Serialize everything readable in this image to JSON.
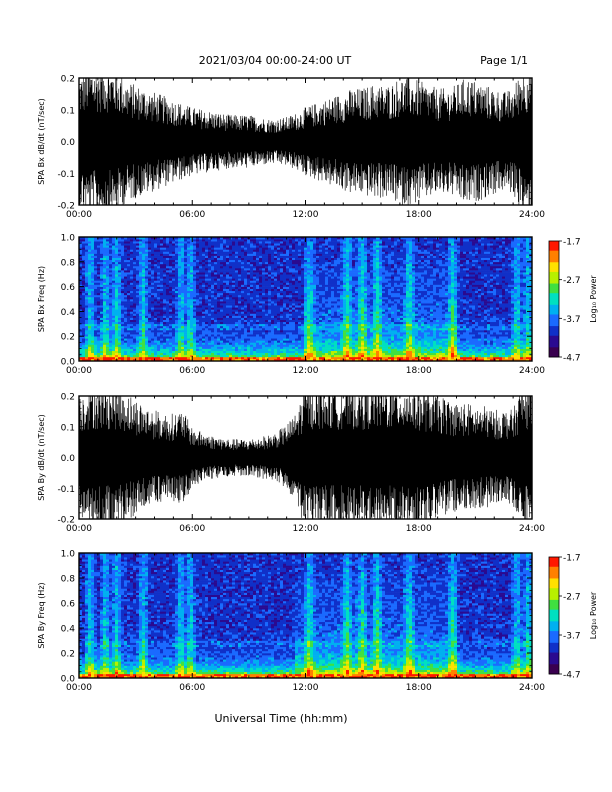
{
  "header": {
    "title": "2021/03/04  00:00-24:00 UT",
    "page": "Page 1/1"
  },
  "xlabel": "Universal Time (hh:mm)",
  "colors": {
    "trace": "#000000",
    "colormap": [
      "#3a0050",
      "#2a0a90",
      "#1030c8",
      "#1a6aff",
      "#00b0f0",
      "#00e0c0",
      "#40e040",
      "#b8f000",
      "#ffe000",
      "#ff8000",
      "#ff1800"
    ]
  },
  "chart_data": [
    {
      "type": "line",
      "ylabel": "SPA Bx dB/dt (nT/sec)",
      "xlim": [
        0,
        24
      ],
      "ylim": [
        -0.2,
        0.2
      ],
      "xticks": [
        "00:00",
        "06:00",
        "12:00",
        "18:00",
        "24:00"
      ],
      "yticks": [
        "-0.2",
        "-0.1",
        "0.0",
        "0.1",
        "0.2"
      ],
      "envelope": {
        "hours": [
          0,
          0.5,
          1,
          1.5,
          2,
          2.5,
          3,
          3.5,
          4,
          4.5,
          5,
          5.5,
          6,
          6.5,
          7,
          7.5,
          8,
          8.5,
          9,
          9.5,
          10,
          10.5,
          11,
          11.5,
          12,
          12.5,
          13,
          13.5,
          14,
          14.5,
          15,
          15.5,
          16,
          16.5,
          17,
          17.5,
          18,
          18.5,
          19,
          19.5,
          20,
          20.5,
          21,
          21.5,
          22,
          22.5,
          23,
          23.5,
          24
        ],
        "amplitude": [
          0.17,
          0.2,
          0.2,
          0.2,
          0.19,
          0.16,
          0.15,
          0.14,
          0.13,
          0.12,
          0.11,
          0.1,
          0.09,
          0.085,
          0.08,
          0.075,
          0.07,
          0.07,
          0.07,
          0.065,
          0.06,
          0.06,
          0.065,
          0.075,
          0.09,
          0.1,
          0.11,
          0.12,
          0.13,
          0.14,
          0.14,
          0.15,
          0.15,
          0.15,
          0.17,
          0.17,
          0.16,
          0.15,
          0.14,
          0.14,
          0.15,
          0.17,
          0.16,
          0.15,
          0.14,
          0.13,
          0.14,
          0.2,
          0.2
        ]
      }
    },
    {
      "type": "heatmap",
      "ylabel": "SPA Bx Freq (Hz)",
      "xlim": [
        0,
        24
      ],
      "ylim": [
        0,
        1
      ],
      "xticks": [
        "00:00",
        "06:00",
        "12:00",
        "18:00",
        "24:00"
      ],
      "yticks": [
        "0.0",
        "0.2",
        "0.4",
        "0.6",
        "0.8",
        "1.0"
      ],
      "colorbar": {
        "label": "Log₁₀ Power",
        "ticks": [
          "-1.7",
          "-2.7",
          "-3.7",
          "-4.7"
        ],
        "range": [
          -4.7,
          -1.7
        ]
      },
      "activity_hours": [
        0.6,
        1.4,
        2.0,
        3.4,
        5.4,
        5.9,
        12.2,
        14.2,
        15.0,
        15.8,
        17.5,
        19.8,
        23.2,
        23.8
      ],
      "active_intervals": [
        [
          12.0,
          20.0
        ]
      ]
    },
    {
      "type": "line",
      "ylabel": "SPA By dB/dt (nT/sec)",
      "xlim": [
        0,
        24
      ],
      "ylim": [
        -0.2,
        0.2
      ],
      "xticks": [
        "00:00",
        "06:00",
        "12:00",
        "18:00",
        "24:00"
      ],
      "yticks": [
        "-0.2",
        "-0.1",
        "0.0",
        "0.1",
        "0.2"
      ],
      "envelope": {
        "hours": [
          0,
          0.5,
          1,
          1.5,
          2,
          2.5,
          3,
          3.5,
          4,
          4.5,
          5,
          5.5,
          6,
          6.5,
          7,
          7.5,
          8,
          8.5,
          9,
          9.5,
          10,
          10.5,
          11,
          11.5,
          12,
          12.5,
          13,
          13.5,
          14,
          14.5,
          15,
          15.5,
          16,
          16.5,
          17,
          17.5,
          18,
          18.5,
          19,
          19.5,
          20,
          20.5,
          21,
          21.5,
          22,
          22.5,
          23,
          23.5,
          24
        ],
        "amplitude": [
          0.17,
          0.2,
          0.2,
          0.2,
          0.2,
          0.18,
          0.16,
          0.14,
          0.13,
          0.12,
          0.12,
          0.13,
          0.08,
          0.07,
          0.06,
          0.055,
          0.05,
          0.05,
          0.05,
          0.055,
          0.06,
          0.07,
          0.09,
          0.12,
          0.2,
          0.2,
          0.2,
          0.2,
          0.2,
          0.2,
          0.2,
          0.2,
          0.2,
          0.2,
          0.2,
          0.2,
          0.19,
          0.18,
          0.17,
          0.16,
          0.15,
          0.15,
          0.14,
          0.14,
          0.13,
          0.13,
          0.13,
          0.2,
          0.2
        ]
      }
    },
    {
      "type": "heatmap",
      "ylabel": "SPA By Freq (Hz)",
      "xlim": [
        0,
        24
      ],
      "ylim": [
        0,
        1
      ],
      "xticks": [
        "00:00",
        "06:00",
        "12:00",
        "18:00",
        "24:00"
      ],
      "yticks": [
        "0.0",
        "0.2",
        "0.4",
        "0.6",
        "0.8",
        "1.0"
      ],
      "colorbar": {
        "label": "Log₁₀ Power",
        "ticks": [
          "-1.7",
          "-2.7",
          "-3.7",
          "-4.7"
        ],
        "range": [
          -4.7,
          -1.7
        ]
      },
      "activity_hours": [
        0.6,
        1.4,
        2.0,
        3.4,
        5.4,
        5.9,
        12.2,
        14.2,
        15.0,
        15.8,
        17.5,
        19.8,
        23.2,
        23.8
      ],
      "active_intervals": [
        [
          11.5,
          20.0
        ]
      ]
    }
  ]
}
